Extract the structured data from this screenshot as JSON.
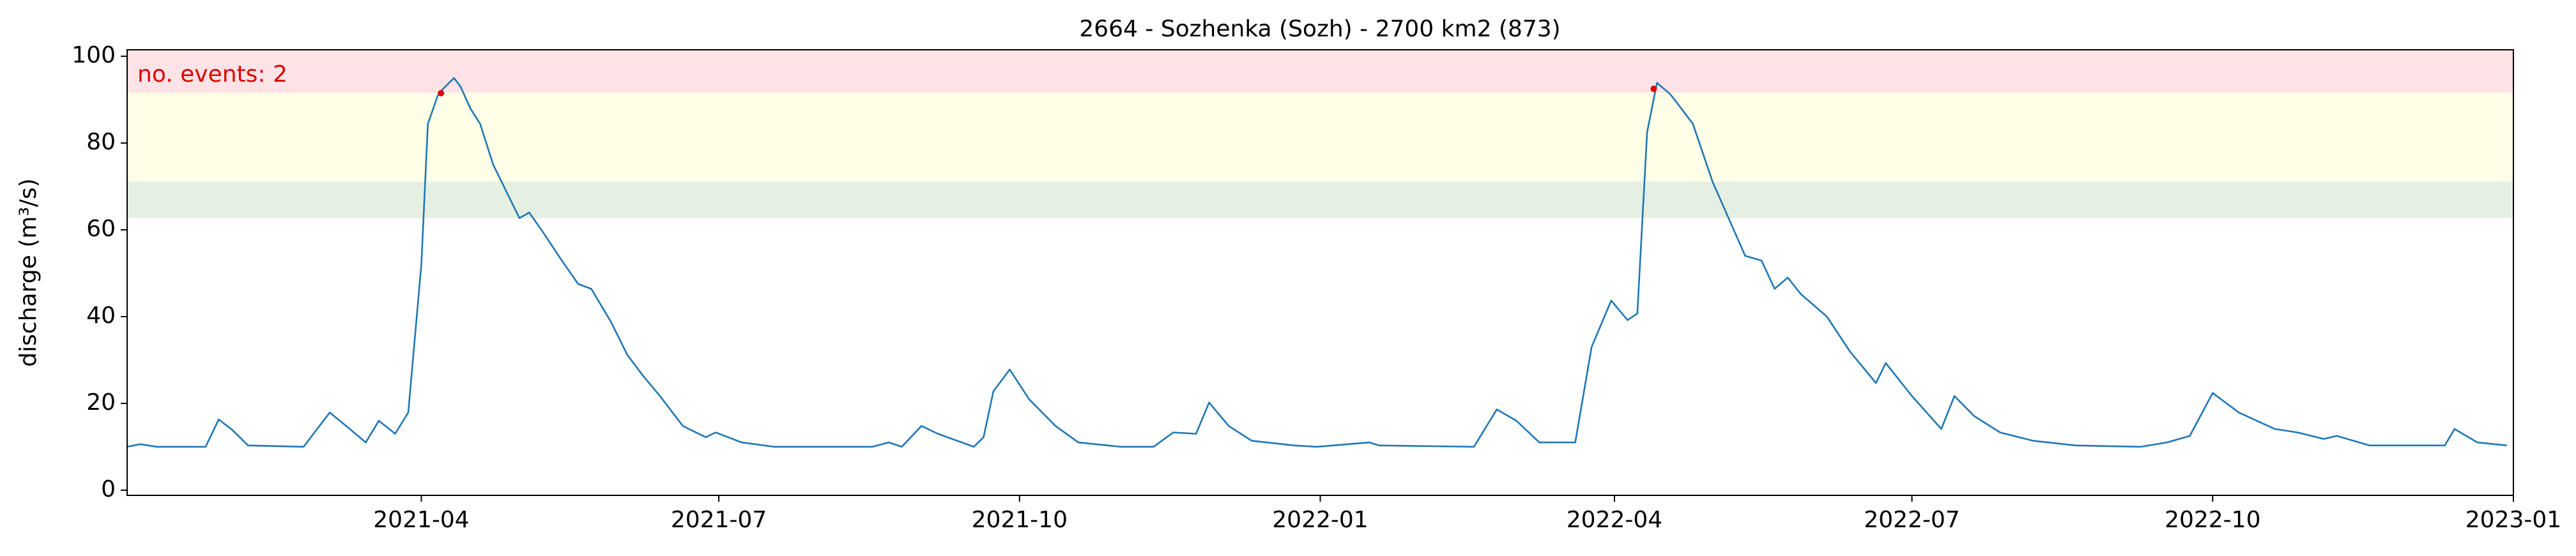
{
  "chart_data": {
    "type": "line",
    "title": "2664 - Sozhenka (Sozh) - 2700 km2 (873)",
    "y_label": "discharge (m³/s)",
    "annotation": "no. events: 2",
    "annotation_color": "#e00000",
    "xlim": [
      "2021-01-01",
      "2023-01-01"
    ],
    "ylim": [
      -1.2,
      101.5
    ],
    "xticks": [
      {
        "value": "2021-04-01",
        "label": "2021-04"
      },
      {
        "value": "2021-07-01",
        "label": "2021-07"
      },
      {
        "value": "2021-10-01",
        "label": "2021-10"
      },
      {
        "value": "2022-01-01",
        "label": "2022-01"
      },
      {
        "value": "2022-04-01",
        "label": "2022-04"
      },
      {
        "value": "2022-07-01",
        "label": "2022-07"
      },
      {
        "value": "2022-10-01",
        "label": "2022-10"
      },
      {
        "value": "2023-01-01",
        "label": "2023-01"
      }
    ],
    "yticks": [
      0,
      20,
      40,
      60,
      80,
      100
    ],
    "bands": [
      {
        "from": 62.7,
        "to": 71.1,
        "color": "#e6f0e2"
      },
      {
        "from": 71.1,
        "to": 91.6,
        "color": "#fffee6"
      },
      {
        "from": 91.6,
        "to": 101.5,
        "color": "#ffe3e6"
      }
    ],
    "series": [
      {
        "color": "#1f77b4",
        "x": [
          "2021-01-01",
          "2021-01-05",
          "2021-01-10",
          "2021-01-25",
          "2021-01-29",
          "2021-02-02",
          "2021-02-07",
          "2021-02-24",
          "2021-02-27",
          "2021-03-04",
          "2021-03-09",
          "2021-03-15",
          "2021-03-19",
          "2021-03-24",
          "2021-03-28",
          "2021-04-01",
          "2021-04-03",
          "2021-04-06",
          "2021-04-07",
          "2021-04-11",
          "2021-04-13",
          "2021-04-16",
          "2021-04-19",
          "2021-04-23",
          "2021-05-01",
          "2021-05-04",
          "2021-05-08",
          "2021-05-14",
          "2021-05-19",
          "2021-05-23",
          "2021-05-29",
          "2021-06-03",
          "2021-06-08",
          "2021-06-13",
          "2021-06-20",
          "2021-06-27",
          "2021-06-30",
          "2021-07-08",
          "2021-07-18",
          "2021-08-17",
          "2021-08-22",
          "2021-08-26",
          "2021-09-01",
          "2021-09-06",
          "2021-09-17",
          "2021-09-20",
          "2021-09-23",
          "2021-09-28",
          "2021-10-04",
          "2021-10-12",
          "2021-10-19",
          "2021-11-01",
          "2021-11-11",
          "2021-11-17",
          "2021-11-24",
          "2021-11-28",
          "2021-12-04",
          "2021-12-11",
          "2021-12-24",
          "2021-12-31",
          "2022-01-16",
          "2022-01-19",
          "2022-02-17",
          "2022-02-24",
          "2022-03-02",
          "2022-03-09",
          "2022-03-20",
          "2022-03-25",
          "2022-03-31",
          "2022-04-05",
          "2022-04-08",
          "2022-04-11",
          "2022-04-14",
          "2022-04-18",
          "2022-04-20",
          "2022-04-25",
          "2022-05-01",
          "2022-05-11",
          "2022-05-16",
          "2022-05-20",
          "2022-05-24",
          "2022-05-28",
          "2022-06-05",
          "2022-06-12",
          "2022-06-20",
          "2022-06-23",
          "2022-07-01",
          "2022-07-10",
          "2022-07-14",
          "2022-07-20",
          "2022-07-28",
          "2022-08-07",
          "2022-08-20",
          "2022-09-09",
          "2022-09-17",
          "2022-09-24",
          "2022-10-01",
          "2022-10-09",
          "2022-10-20",
          "2022-10-27",
          "2022-11-04",
          "2022-11-08",
          "2022-11-18",
          "2022-12-11",
          "2022-12-14",
          "2022-12-21",
          "2022-12-30"
        ],
        "values": [
          10,
          10.6,
          10,
          10,
          16.3,
          14,
          10.3,
          10,
          13,
          17.9,
          14.8,
          11,
          16,
          13,
          17.9,
          52,
          84.4,
          90.9,
          92,
          95,
          93,
          88,
          84.4,
          75,
          62.7,
          64,
          59.7,
          52.9,
          47.5,
          46.4,
          38.8,
          31.2,
          26.2,
          21.7,
          14.8,
          12.2,
          13.3,
          11,
          10,
          10,
          11,
          10,
          14.8,
          13,
          10,
          12.2,
          22.8,
          27.8,
          20.9,
          14.8,
          11,
          10,
          10,
          13.3,
          13,
          20.2,
          14.8,
          11.4,
          10.3,
          10,
          11,
          10.3,
          10,
          18.6,
          16,
          11,
          11,
          33,
          43.7,
          39.2,
          40.7,
          82.5,
          93.9,
          91.3,
          89.4,
          84.4,
          71.1,
          54,
          52.9,
          46.4,
          49,
          45.2,
          40,
          32,
          24.7,
          29.3,
          21.7,
          14.1,
          21.7,
          17.1,
          13.3,
          11.4,
          10.3,
          10,
          11,
          12.5,
          22.4,
          17.9,
          14.1,
          13.3,
          11.8,
          12.5,
          10.3,
          10.3,
          14.1,
          11,
          10.3
        ]
      },
      {
        "type": "scatter",
        "color": "#e00000",
        "x": [
          "2021-04-07",
          "2022-04-13"
        ],
        "values": [
          91.5,
          92.5
        ]
      }
    ]
  }
}
